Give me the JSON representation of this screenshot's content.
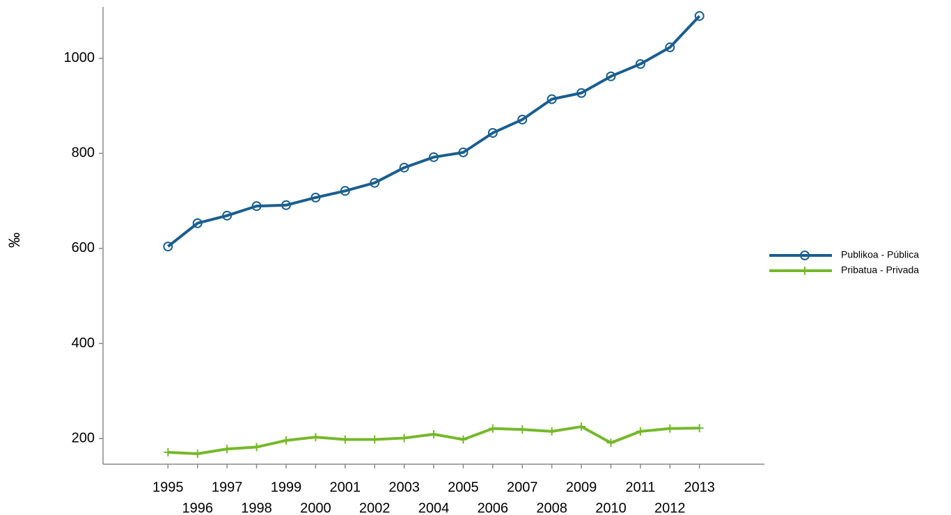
{
  "chart_data": {
    "type": "line",
    "y_label": "‰",
    "x": [
      1995,
      1996,
      1997,
      1998,
      1999,
      2000,
      2001,
      2002,
      2003,
      2004,
      2005,
      2006,
      2007,
      2008,
      2009,
      2010,
      2011,
      2012,
      2013
    ],
    "series": [
      {
        "name": "Publikoa - Pública",
        "color": "#1a5e8e",
        "marker": "circle",
        "values": [
          604,
          653,
          669,
          689,
          691,
          707,
          721,
          738,
          770,
          792,
          802,
          843,
          871,
          914,
          927,
          962,
          988,
          1023,
          1089
        ]
      },
      {
        "name": "Pribatua - Privada",
        "color": "#76b82a",
        "marker": "plus",
        "values": [
          171,
          168,
          178,
          182,
          196,
          203,
          198,
          198,
          201,
          209,
          198,
          221,
          219,
          215,
          225,
          191,
          215,
          221,
          222
        ]
      }
    ],
    "xlim": [
      1992.8,
      2015.2
    ],
    "xticks": [
      1995,
      1996,
      1997,
      1998,
      1999,
      2000,
      2001,
      2002,
      2003,
      2004,
      2005,
      2006,
      2007,
      2008,
      2009,
      2010,
      2011,
      2012,
      2013
    ],
    "ylim": [
      146,
      1108
    ],
    "yticks": [
      200,
      400,
      600,
      800,
      1000
    ],
    "grid": false,
    "legend": "right"
  }
}
